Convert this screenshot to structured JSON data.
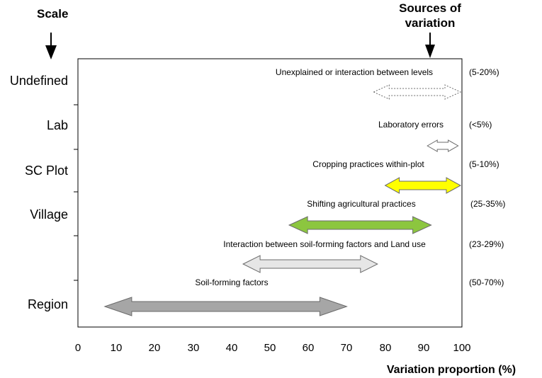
{
  "scale_label": "Scale",
  "sources_label_line1": "Sources of",
  "sources_label_line2": "variation",
  "xaxis_label": "Variation proportion (%)",
  "xaxis_ticks": [
    "0",
    "10",
    "20",
    "30",
    "40",
    "50",
    "60",
    "70",
    "80",
    "90",
    "100"
  ],
  "scale_levels": [
    "Undefined",
    "Lab",
    "SC Plot",
    "Village",
    "Region"
  ],
  "sources": [
    {
      "label": "Unexplained or interaction between levels",
      "range": "(5-20%)",
      "from": 77,
      "to": 100,
      "fill": "#ffffff",
      "style": "dotted"
    },
    {
      "label": "Laboratory errors",
      "range": "(<5%)",
      "from": 91,
      "to": 99,
      "fill": "#ffffff",
      "style": "outline"
    },
    {
      "label": "Cropping practices within-plot",
      "range": "(5-10%)",
      "from": 80,
      "to": 100,
      "fill": "#ffff00",
      "style": "solid"
    },
    {
      "label": "Shifting agricultural practices",
      "range": "(25-35%)",
      "from": 55,
      "to": 92,
      "fill": "#8cc63f",
      "style": "solid"
    },
    {
      "label": "Interaction between soil-forming factors and Land use",
      "range": "(23-29%)",
      "from": 43,
      "to": 78,
      "fill": "#e6e6e6",
      "style": "solid"
    },
    {
      "label": "Soil-forming factors",
      "range": "(50-70%)",
      "from": 7,
      "to": 70,
      "fill": "#a6a6a6",
      "style": "solid"
    }
  ],
  "colors": {
    "axis": "#000000",
    "arrow_outline": "#6b6b6b"
  }
}
